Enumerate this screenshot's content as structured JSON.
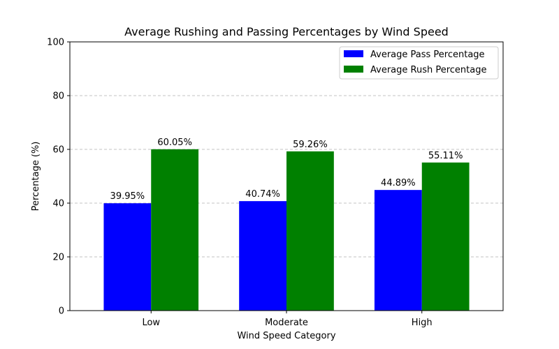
{
  "chart_data": {
    "type": "bar",
    "title": "Average Rushing and Passing Percentages by Wind Speed",
    "xlabel": "Wind Speed Category",
    "ylabel": "Percentage (%)",
    "categories": [
      "Low",
      "Moderate",
      "High"
    ],
    "series": [
      {
        "name": "Average Pass Percentage",
        "color": "#0000ff",
        "values": [
          39.95,
          40.74,
          44.89
        ],
        "labels": [
          "39.95%",
          "40.74%",
          "44.89%"
        ]
      },
      {
        "name": "Average Rush Percentage",
        "color": "#008000",
        "values": [
          60.05,
          59.26,
          55.11
        ],
        "labels": [
          "60.05%",
          "59.26%",
          "55.11%"
        ]
      }
    ],
    "ylim": [
      0,
      100
    ],
    "yticks": [
      0,
      20,
      40,
      60,
      80,
      100
    ],
    "ytick_labels": [
      "0",
      "20",
      "40",
      "60",
      "80",
      "100"
    ],
    "grid": "y-dashed",
    "legend_position": "top-right"
  }
}
